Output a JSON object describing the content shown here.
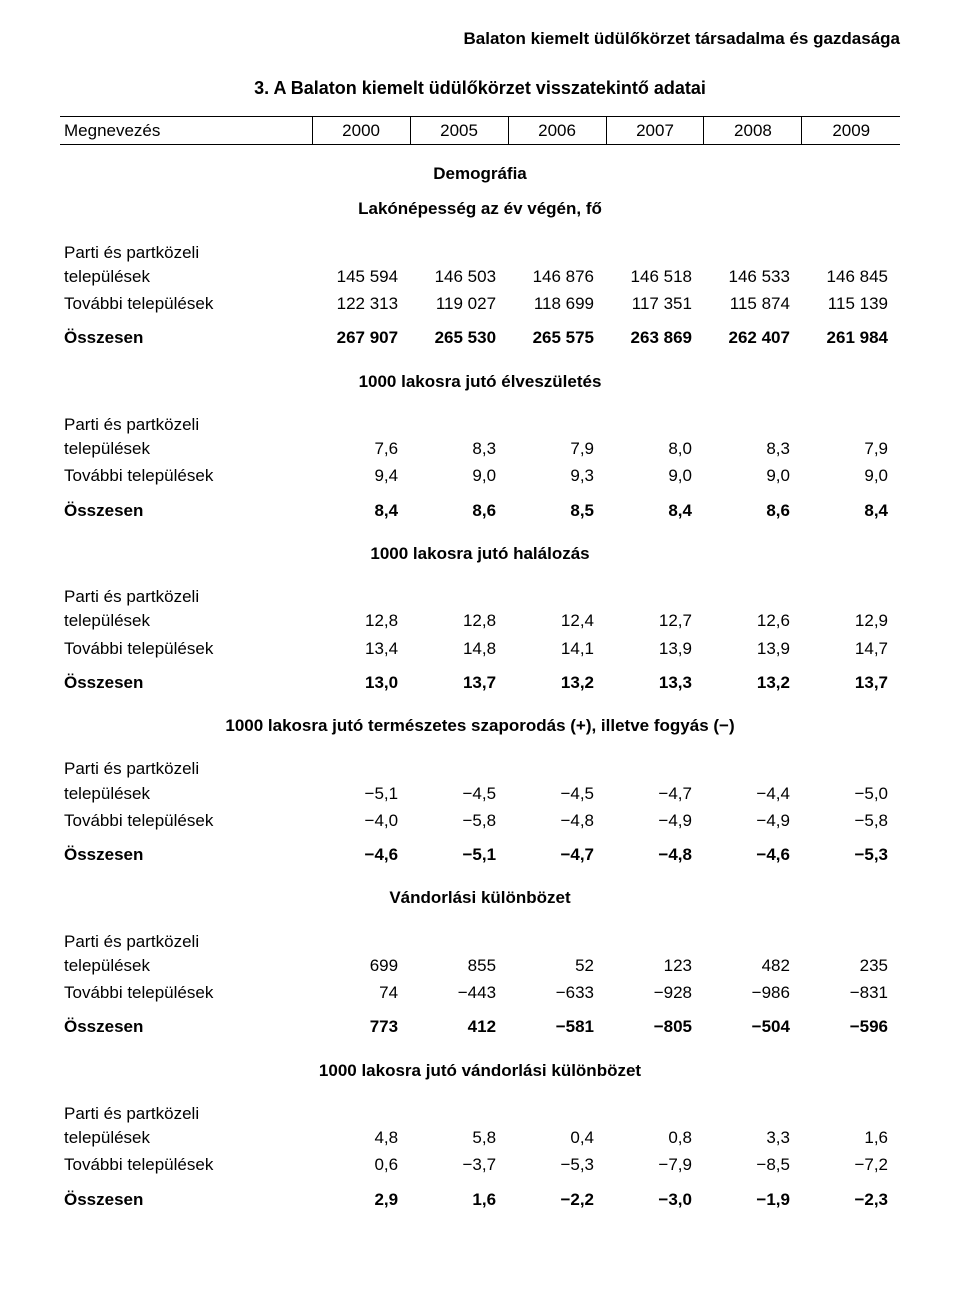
{
  "running_head": "Balaton kiemelt üdülőkörzet társadalma és gazdasága",
  "title": "3. A Balaton kiemelt üdülőkörzet visszatekintő adatai",
  "columns": {
    "megnevezes": "Megnevezés",
    "years": [
      "2000",
      "2005",
      "2006",
      "2007",
      "2008",
      "2009"
    ]
  },
  "top_section_1": "Demográfia",
  "top_section_2": "Lakónépesség az év végén, fő",
  "row_labels": {
    "parti1": "Parti és partközeli",
    "parti2": "települések",
    "tovabbi": "További települések",
    "osszesen": "Összesen"
  },
  "sections": [
    {
      "heading": null,
      "parti": [
        "145 594",
        "146 503",
        "146 876",
        "146 518",
        "146 533",
        "146 845"
      ],
      "tovabbi": [
        "122 313",
        "119 027",
        "118 699",
        "117 351",
        "115 874",
        "115 139"
      ],
      "osszesen": [
        "267 907",
        "265 530",
        "265 575",
        "263 869",
        "262 407",
        "261 984"
      ]
    },
    {
      "heading": "1000 lakosra jutó élveszületés",
      "parti": [
        "7,6",
        "8,3",
        "7,9",
        "8,0",
        "8,3",
        "7,9"
      ],
      "tovabbi": [
        "9,4",
        "9,0",
        "9,3",
        "9,0",
        "9,0",
        "9,0"
      ],
      "osszesen": [
        "8,4",
        "8,6",
        "8,5",
        "8,4",
        "8,6",
        "8,4"
      ]
    },
    {
      "heading": "1000 lakosra jutó halálozás",
      "parti": [
        "12,8",
        "12,8",
        "12,4",
        "12,7",
        "12,6",
        "12,9"
      ],
      "tovabbi": [
        "13,4",
        "14,8",
        "14,1",
        "13,9",
        "13,9",
        "14,7"
      ],
      "osszesen": [
        "13,0",
        "13,7",
        "13,2",
        "13,3",
        "13,2",
        "13,7"
      ]
    },
    {
      "heading": "1000 lakosra jutó természetes szaporodás (+), illetve fogyás (−)",
      "parti": [
        "−5,1",
        "−4,5",
        "−4,5",
        "−4,7",
        "−4,4",
        "−5,0"
      ],
      "tovabbi": [
        "−4,0",
        "−5,8",
        "−4,8",
        "−4,9",
        "−4,9",
        "−5,8"
      ],
      "osszesen": [
        "−4,6",
        "−5,1",
        "−4,7",
        "−4,8",
        "−4,6",
        "−5,3"
      ]
    },
    {
      "heading": "Vándorlási különbözet",
      "parti": [
        "699",
        "855",
        "52",
        "123",
        "482",
        "235"
      ],
      "tovabbi": [
        "74",
        "−443",
        "−633",
        "−928",
        "−986",
        "−831"
      ],
      "osszesen": [
        "773",
        "412",
        "−581",
        "−805",
        "−504",
        "−596"
      ]
    },
    {
      "heading": "1000 lakosra jutó vándorlási különbözet",
      "parti": [
        "4,8",
        "5,8",
        "0,4",
        "0,8",
        "3,3",
        "1,6"
      ],
      "tovabbi": [
        "0,6",
        "−3,7",
        "−5,3",
        "−7,9",
        "−8,5",
        "−7,2"
      ],
      "osszesen": [
        "2,9",
        "1,6",
        "−2,2",
        "−3,0",
        "−1,9",
        "−2,3"
      ]
    }
  ]
}
